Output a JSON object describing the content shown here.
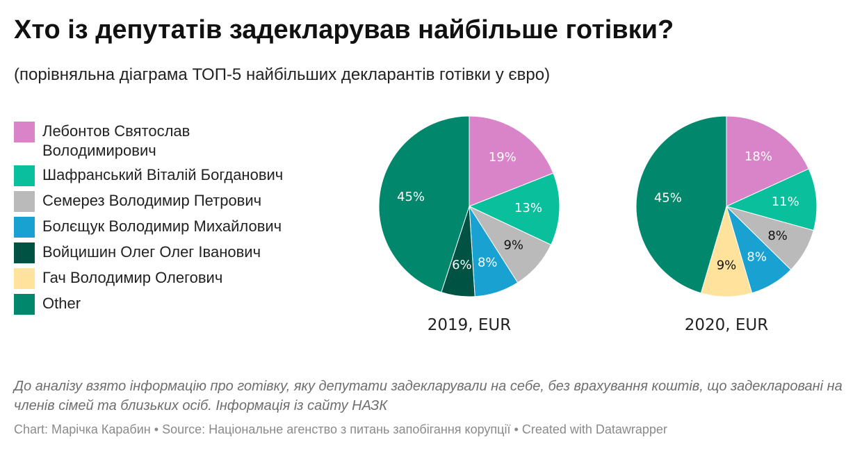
{
  "header": {
    "title": "Хто із депутатів задекларував найбільше готівки?",
    "subtitle": "(порівняльна діаграма ТОП-5 найбільших декларантів готівки у євро)"
  },
  "legend": [
    {
      "label": "Лебонтов Святослав Володимирович",
      "color": "#d984c8"
    },
    {
      "label": "Шафранський Віталій Богданович",
      "color": "#0abf9c"
    },
    {
      "label": "Семерез Володимир Петрович",
      "color": "#bababa"
    },
    {
      "label": "Болєщук Володимир Михайлович",
      "color": "#19a2d1"
    },
    {
      "label": "Войцишин Олег Олег Іванович",
      "color": "#005243"
    },
    {
      "label": "Гач Володимир Олегович",
      "color": "#ffe29c"
    },
    {
      "label": "Other",
      "color": "#00876c"
    }
  ],
  "chart_data": [
    {
      "type": "pie",
      "title": "2019, EUR",
      "slices": [
        {
          "name": "Лебонтов Святослав Володимирович",
          "value": 19,
          "label": "19%",
          "color": "#d984c8",
          "label_color": "#ffffff"
        },
        {
          "name": "Шафранський Віталій Богданович",
          "value": 13,
          "label": "13%",
          "color": "#0abf9c",
          "label_color": "#ffffff"
        },
        {
          "name": "Семерез Володимир Петрович",
          "value": 9,
          "label": "9%",
          "color": "#bababa",
          "label_color": "#111111"
        },
        {
          "name": "Болєщук Володимир Михайлович",
          "value": 8,
          "label": "8%",
          "color": "#19a2d1",
          "label_color": "#ffffff"
        },
        {
          "name": "Войцишин Олег Олег Іванович",
          "value": 6,
          "label": "6%",
          "color": "#005243",
          "label_color": "#ffffff"
        },
        {
          "name": "Other",
          "value": 45,
          "label": "45%",
          "color": "#00876c",
          "label_color": "#ffffff"
        }
      ]
    },
    {
      "type": "pie",
      "title": "2020, EUR",
      "slices": [
        {
          "name": "Лебонтов Святослав Володимирович",
          "value": 18,
          "label": "18%",
          "color": "#d984c8",
          "label_color": "#ffffff"
        },
        {
          "name": "Шафранський Віталій Богданович",
          "value": 11,
          "label": "11%",
          "color": "#0abf9c",
          "label_color": "#ffffff"
        },
        {
          "name": "Семерез Володимир Петрович",
          "value": 8,
          "label": "8%",
          "color": "#bababa",
          "label_color": "#111111"
        },
        {
          "name": "Болєщук Володимир Михайлович",
          "value": 8,
          "label": "8%",
          "color": "#19a2d1",
          "label_color": "#ffffff"
        },
        {
          "name": "Гач Володимир Олегович",
          "value": 9,
          "label": "9%",
          "color": "#ffe29c",
          "label_color": "#111111"
        },
        {
          "name": "Other",
          "value": 45,
          "label": "45%",
          "color": "#00876c",
          "label_color": "#ffffff"
        }
      ]
    }
  ],
  "footer": {
    "note": "До аналізу взято інформацію про готівку, яку депутати задекларували на себе, без врахування коштів, що задекларовані на членів сімей та близьких осіб. Інформація із сайту НАЗК",
    "byline_chart": "Chart: Марічка Карабин",
    "byline_source": "Source: Національне агенство з питань запобігання корупції",
    "byline_created": "Created with Datawrapper",
    "separator": "•"
  }
}
